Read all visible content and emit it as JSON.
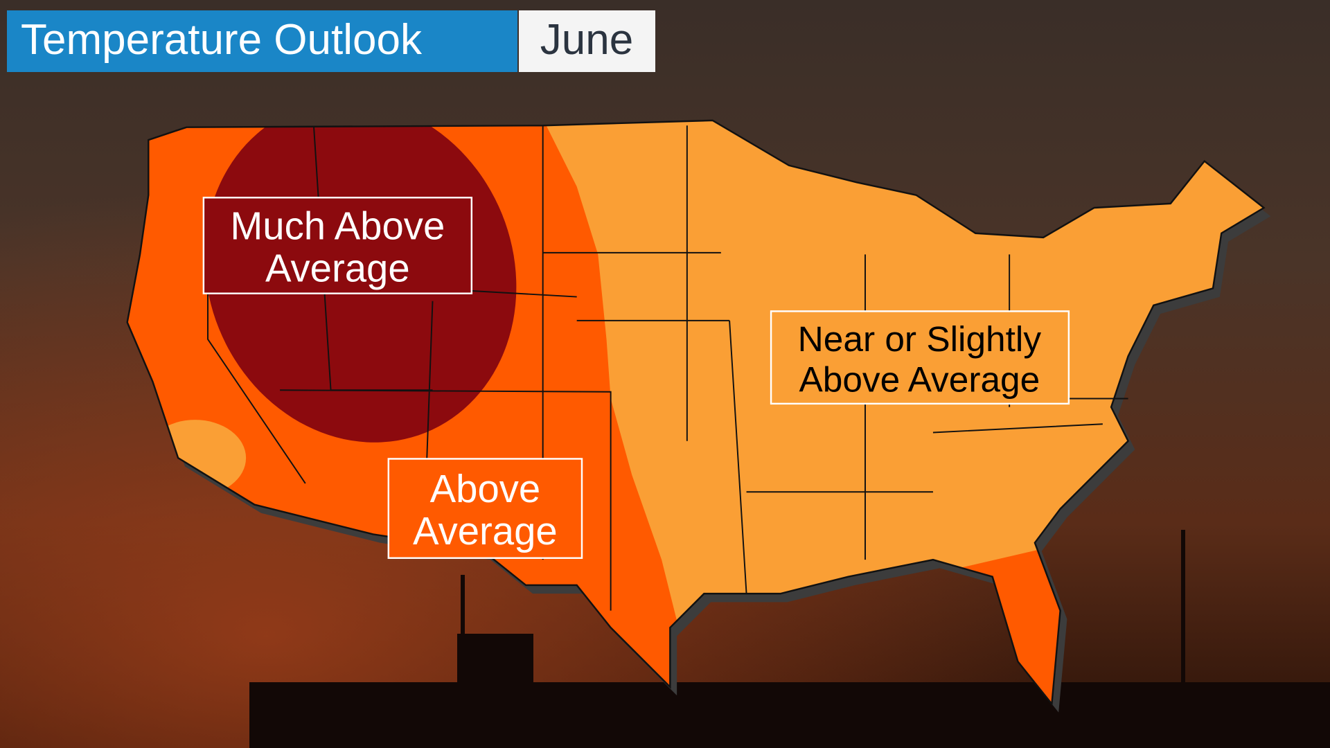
{
  "header": {
    "title": "Temperature Outlook",
    "month": "June"
  },
  "regions": [
    {
      "label_lines": [
        "Much Above",
        "Average"
      ]
    },
    {
      "label_lines": [
        "Above",
        "Average"
      ]
    },
    {
      "label_lines": [
        "Near or Slightly",
        "Above Average"
      ]
    }
  ]
}
